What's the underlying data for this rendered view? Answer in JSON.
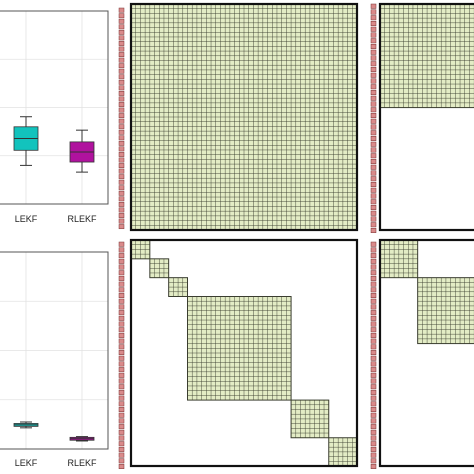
{
  "colors": {
    "panel_border": "#111111",
    "plot_border": "#555555",
    "grid": "#e2e2e2",
    "cell_fill": "#e3ecc5",
    "cell_line": "#3a3d2f",
    "label_bar_fill": "#d98a8a",
    "label_bar_line": "#7a3434",
    "label_bar_dark": "#5a2a2a",
    "lekf": "#12c3bd",
    "rlekf": "#b0129e"
  },
  "chart_data": [
    {
      "type": "box",
      "panel": "top-left",
      "categories": [
        "LEKF",
        "RLEKF"
      ],
      "boxes": [
        {
          "category": "LEKF",
          "color": "lekf",
          "whisker_low": 0.23,
          "q1": 0.32,
          "median": 0.39,
          "q3": 0.46,
          "whisker_high": 0.52
        },
        {
          "category": "RLEKF",
          "color": "rlekf",
          "whisker_low": 0.19,
          "q1": 0.25,
          "median": 0.31,
          "q3": 0.37,
          "whisker_high": 0.44
        }
      ],
      "ylim": [
        0,
        1.15
      ],
      "grid": true
    },
    {
      "type": "box",
      "panel": "bottom-left",
      "categories": [
        "LEKF",
        "RLEKF"
      ],
      "boxes": [
        {
          "category": "LEKF",
          "color": "lekf",
          "whisker_low": 0.145,
          "q1": 0.155,
          "median": 0.165,
          "q3": 0.175,
          "whisker_high": 0.185
        },
        {
          "category": "RLEKF",
          "color": "rlekf",
          "whisker_low": 0.055,
          "q1": 0.06,
          "median": 0.07,
          "q3": 0.08,
          "whisker_high": 0.085
        }
      ],
      "ylim": [
        0,
        1.35
      ],
      "grid": true
    },
    {
      "type": "heatmap",
      "panel": "top-middle",
      "matrix_size": 48,
      "blocks": [
        {
          "start": 0,
          "size": 48
        }
      ]
    },
    {
      "type": "heatmap",
      "panel": "bottom-middle",
      "matrix_size": 48,
      "blocks": [
        {
          "start": 0,
          "size": 4
        },
        {
          "start": 4,
          "size": 4
        },
        {
          "start": 8,
          "size": 4
        },
        {
          "start": 12,
          "size": 22
        },
        {
          "start": 34,
          "size": 8
        },
        {
          "start": 42,
          "size": 6
        }
      ]
    },
    {
      "type": "heatmap",
      "panel": "top-right",
      "matrix_size": 48,
      "blocks": [
        {
          "start": 0,
          "size": 22
        },
        {
          "start": 22,
          "size": 26
        }
      ]
    },
    {
      "type": "heatmap",
      "panel": "bottom-right",
      "matrix_size": 48,
      "blocks": [
        {
          "start": 0,
          "size": 8
        },
        {
          "start": 8,
          "size": 14
        },
        {
          "start": 22,
          "size": 26
        }
      ]
    }
  ]
}
